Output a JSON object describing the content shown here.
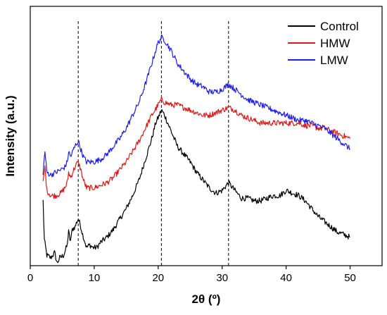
{
  "chart_data": {
    "type": "line",
    "xlabel": "2θ (º)",
    "ylabel": "Intensity (a.u.)",
    "xlim": [
      0,
      55
    ],
    "ylim": [
      0,
      100
    ],
    "x_ticks": [
      0,
      10,
      20,
      30,
      40,
      50
    ],
    "y_ticks_shown": false,
    "grid": false,
    "legend_position": "top-right",
    "reference_lines_x": [
      7.5,
      20.5,
      31.0
    ],
    "series": [
      {
        "name": "Control",
        "color": "#000000",
        "points": [
          [
            2.0,
            25
          ],
          [
            2.2,
            10
          ],
          [
            2.6,
            4
          ],
          [
            3.2,
            3
          ],
          [
            3.8,
            5
          ],
          [
            4.2,
            1
          ],
          [
            4.6,
            3
          ],
          [
            5.2,
            4
          ],
          [
            5.8,
            8
          ],
          [
            6.0,
            14
          ],
          [
            6.2,
            9
          ],
          [
            6.6,
            14
          ],
          [
            7.0,
            15
          ],
          [
            7.3,
            17
          ],
          [
            7.5,
            18
          ],
          [
            7.8,
            16
          ],
          [
            8.2,
            12
          ],
          [
            8.8,
            7
          ],
          [
            9.3,
            8
          ],
          [
            9.8,
            7
          ],
          [
            10.4,
            7
          ],
          [
            11,
            9
          ],
          [
            12,
            11
          ],
          [
            13,
            14
          ],
          [
            14,
            18
          ],
          [
            15,
            22
          ],
          [
            16,
            27
          ],
          [
            17,
            33
          ],
          [
            18,
            41
          ],
          [
            19,
            49
          ],
          [
            19.6,
            55
          ],
          [
            20.0,
            57
          ],
          [
            20.5,
            60
          ],
          [
            21,
            58
          ],
          [
            22,
            52
          ],
          [
            23,
            46
          ],
          [
            24,
            43
          ],
          [
            25,
            40
          ],
          [
            26,
            36
          ],
          [
            27,
            33
          ],
          [
            28,
            30
          ],
          [
            29,
            28
          ],
          [
            30,
            29
          ],
          [
            31,
            32
          ],
          [
            32,
            29
          ],
          [
            33,
            26
          ],
          [
            34,
            26
          ],
          [
            35,
            25
          ],
          [
            36,
            25
          ],
          [
            37,
            26
          ],
          [
            38,
            27
          ],
          [
            39,
            27
          ],
          [
            40,
            29
          ],
          [
            41,
            28
          ],
          [
            42,
            27
          ],
          [
            43,
            25
          ],
          [
            44,
            22
          ],
          [
            45,
            19
          ],
          [
            46,
            17
          ],
          [
            47,
            15
          ],
          [
            48,
            13
          ],
          [
            49,
            12
          ],
          [
            50,
            11
          ]
        ]
      },
      {
        "name": "HMW",
        "color": "#dd1a1a",
        "points": [
          [
            2.0,
            32
          ],
          [
            2.3,
            38
          ],
          [
            2.6,
            29
          ],
          [
            3.2,
            27
          ],
          [
            4.0,
            27
          ],
          [
            4.8,
            28
          ],
          [
            5.4,
            30
          ],
          [
            5.8,
            32
          ],
          [
            6.0,
            36
          ],
          [
            6.3,
            34
          ],
          [
            6.8,
            37
          ],
          [
            7.2,
            39
          ],
          [
            7.5,
            40
          ],
          [
            7.9,
            37
          ],
          [
            8.3,
            33
          ],
          [
            8.8,
            30
          ],
          [
            9.5,
            30
          ],
          [
            10,
            30
          ],
          [
            11,
            31
          ],
          [
            12,
            32
          ],
          [
            13,
            34
          ],
          [
            14,
            37
          ],
          [
            15,
            40
          ],
          [
            16,
            44
          ],
          [
            17,
            48
          ],
          [
            18,
            53
          ],
          [
            19,
            58
          ],
          [
            20,
            62
          ],
          [
            20.5,
            64
          ],
          [
            21,
            63
          ],
          [
            22,
            62
          ],
          [
            23,
            62
          ],
          [
            24,
            61
          ],
          [
            25,
            60
          ],
          [
            26,
            59
          ],
          [
            27,
            58
          ],
          [
            28,
            58
          ],
          [
            29,
            59
          ],
          [
            30,
            60
          ],
          [
            31,
            61
          ],
          [
            32,
            60
          ],
          [
            33,
            58
          ],
          [
            34,
            57
          ],
          [
            35,
            56
          ],
          [
            36,
            55
          ],
          [
            37,
            55
          ],
          [
            38,
            55
          ],
          [
            39,
            55
          ],
          [
            40,
            55
          ],
          [
            41,
            55
          ],
          [
            42,
            55
          ],
          [
            43,
            54
          ],
          [
            44,
            54
          ],
          [
            45,
            53
          ],
          [
            46,
            53
          ],
          [
            47,
            52
          ],
          [
            48,
            51
          ],
          [
            49,
            50
          ],
          [
            50,
            49
          ]
        ]
      },
      {
        "name": "LMW",
        "color": "#1f1fe8",
        "points": [
          [
            2.0,
            36
          ],
          [
            2.3,
            44
          ],
          [
            2.6,
            36
          ],
          [
            3.2,
            35
          ],
          [
            4.0,
            36
          ],
          [
            4.8,
            37
          ],
          [
            5.4,
            38
          ],
          [
            5.8,
            40
          ],
          [
            6.0,
            44
          ],
          [
            6.3,
            42
          ],
          [
            6.8,
            45
          ],
          [
            7.2,
            47
          ],
          [
            7.5,
            48
          ],
          [
            7.9,
            45
          ],
          [
            8.3,
            42
          ],
          [
            8.8,
            40
          ],
          [
            9.5,
            40
          ],
          [
            10,
            40
          ],
          [
            11,
            41
          ],
          [
            12,
            43
          ],
          [
            13,
            46
          ],
          [
            14,
            49
          ],
          [
            15,
            53
          ],
          [
            16,
            58
          ],
          [
            17,
            63
          ],
          [
            18,
            70
          ],
          [
            19,
            78
          ],
          [
            19.6,
            83
          ],
          [
            20.0,
            86
          ],
          [
            20.5,
            88
          ],
          [
            21,
            87
          ],
          [
            22,
            83
          ],
          [
            23,
            78
          ],
          [
            24,
            75
          ],
          [
            25,
            72
          ],
          [
            26,
            70
          ],
          [
            27,
            69
          ],
          [
            28,
            67
          ],
          [
            29,
            67
          ],
          [
            30,
            68
          ],
          [
            31,
            70
          ],
          [
            32,
            68
          ],
          [
            33,
            66
          ],
          [
            34,
            64
          ],
          [
            35,
            63
          ],
          [
            36,
            62
          ],
          [
            37,
            61
          ],
          [
            38,
            60
          ],
          [
            39,
            59
          ],
          [
            40,
            58
          ],
          [
            41,
            57
          ],
          [
            42,
            56
          ],
          [
            43,
            56
          ],
          [
            44,
            55
          ],
          [
            45,
            54
          ],
          [
            46,
            53
          ],
          [
            47,
            51
          ],
          [
            48,
            49
          ],
          [
            49,
            47
          ],
          [
            50,
            45
          ]
        ]
      }
    ]
  }
}
